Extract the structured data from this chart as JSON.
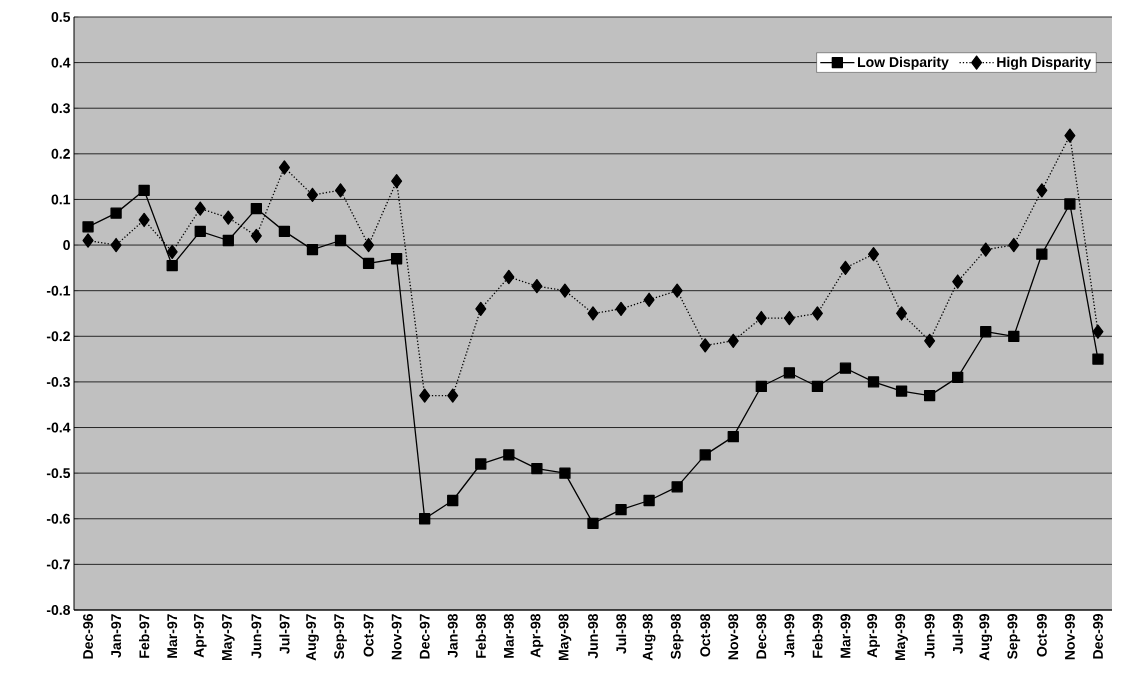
{
  "chart_data": {
    "type": "line",
    "categories": [
      "Dec-96",
      "Jan-97",
      "Feb-97",
      "Mar-97",
      "Apr-97",
      "May-97",
      "Jun-97",
      "Jul-97",
      "Aug-97",
      "Sep-97",
      "Oct-97",
      "Nov-97",
      "Dec-97",
      "Jan-98",
      "Feb-98",
      "Mar-98",
      "Apr-98",
      "May-98",
      "Jun-98",
      "Jul-98",
      "Aug-98",
      "Sep-98",
      "Oct-98",
      "Nov-98",
      "Dec-98",
      "Jan-99",
      "Feb-99",
      "Mar-99",
      "Apr-99",
      "May-99",
      "Jun-99",
      "Jul-99",
      "Aug-99",
      "Sep-99",
      "Oct-99",
      "Nov-99",
      "Dec-99"
    ],
    "series": [
      {
        "name": "Low Disparity",
        "color": "#000000",
        "marker": "square",
        "line_style": "solid",
        "values": [
          0.04,
          0.07,
          0.12,
          -0.045,
          0.03,
          0.01,
          0.08,
          0.03,
          -0.01,
          0.01,
          -0.04,
          -0.03,
          -0.6,
          -0.56,
          -0.48,
          -0.46,
          -0.49,
          -0.5,
          -0.61,
          -0.58,
          -0.56,
          -0.53,
          -0.46,
          -0.42,
          -0.31,
          -0.28,
          -0.31,
          -0.27,
          -0.3,
          -0.32,
          -0.33,
          -0.29,
          -0.19,
          -0.2,
          -0.02,
          0.09,
          -0.25
        ]
      },
      {
        "name": "High Disparity",
        "color": "#000000",
        "marker": "diamond",
        "line_style": "dotted",
        "values": [
          0.01,
          0.0,
          0.055,
          -0.015,
          0.08,
          0.06,
          0.02,
          0.17,
          0.11,
          0.12,
          0.0,
          0.14,
          -0.33,
          -0.33,
          -0.14,
          -0.07,
          -0.09,
          -0.1,
          -0.15,
          -0.14,
          -0.12,
          -0.1,
          -0.22,
          -0.21,
          -0.16,
          -0.16,
          -0.15,
          -0.05,
          -0.02,
          -0.15,
          -0.21,
          -0.08,
          -0.01,
          0.0,
          0.12,
          0.24,
          -0.19
        ]
      }
    ],
    "ylim": [
      -0.8,
      0.5
    ],
    "yticks": [
      -0.8,
      -0.7,
      -0.6,
      -0.5,
      -0.4,
      -0.3,
      -0.2,
      -0.1,
      0,
      0.1,
      0.2,
      0.3,
      0.4,
      0.5
    ],
    "grid": "y",
    "legend": "top right"
  }
}
